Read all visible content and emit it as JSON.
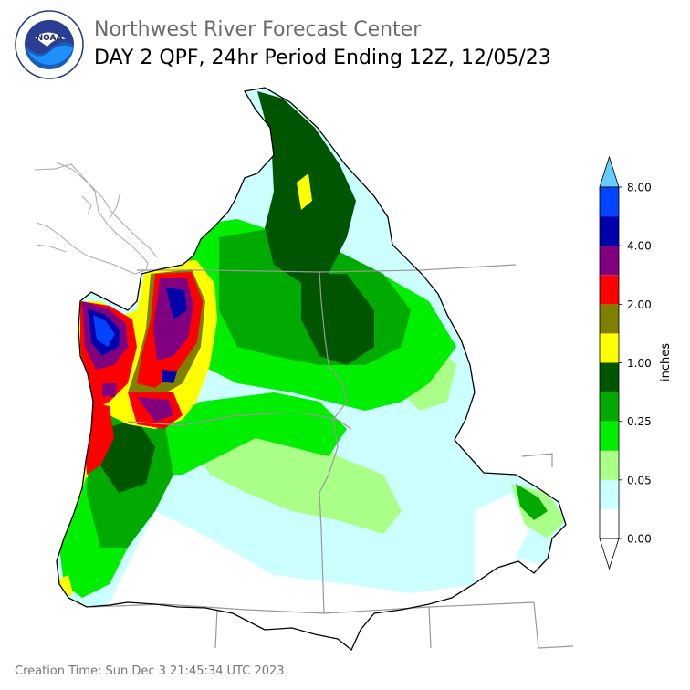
{
  "header": {
    "title": "Northwest River Forecast Center",
    "subtitle": "DAY 2 QPF, 24hr Period Ending 12Z, 12/05/23"
  },
  "logo": {
    "name": "noaa-logo",
    "text": "NOAA"
  },
  "footer": {
    "creation_time": "Creation Time: Sun Dec 3 21:45:34 UTC 2023"
  },
  "chart_data": {
    "type": "heatmap",
    "title": "DAY 2 QPF, 24hr Period Ending 12Z, 12/05/23",
    "colorbar": {
      "label": "inches",
      "tick_labels": [
        "0.00",
        "0.05",
        "0.25",
        "1.00",
        "2.00",
        "4.00",
        "8.00"
      ],
      "levels": [
        {
          "color": "#ffffff"
        },
        {
          "color": "#ccffff"
        },
        {
          "color": "#aaff88"
        },
        {
          "color": "#00ee00"
        },
        {
          "color": "#00aa00"
        },
        {
          "color": "#005500"
        },
        {
          "color": "#ffff00"
        },
        {
          "color": "#808000"
        },
        {
          "color": "#ff0000"
        },
        {
          "color": "#800080"
        },
        {
          "color": "#0000aa"
        },
        {
          "color": "#0044ff"
        }
      ],
      "extend_min": true,
      "extend_max": true,
      "over_color": "#66ccff"
    }
  }
}
